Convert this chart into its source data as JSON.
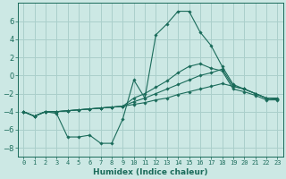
{
  "xlabel": "Humidex (Indice chaleur)",
  "background_color": "#cce8e4",
  "grid_color": "#aacfcb",
  "line_color": "#1a6b5a",
  "x_values": [
    0,
    1,
    2,
    3,
    4,
    5,
    6,
    7,
    8,
    9,
    10,
    11,
    12,
    13,
    14,
    15,
    16,
    17,
    18,
    19,
    20,
    21,
    22,
    23
  ],
  "series1": [
    -4.0,
    -4.5,
    -4.0,
    -4.2,
    -6.8,
    -6.8,
    -6.6,
    -7.5,
    -7.5,
    -4.8,
    -0.5,
    -2.5,
    4.5,
    5.7,
    7.1,
    7.1,
    4.8,
    3.3,
    1.0,
    -1.0,
    -1.5,
    -2.0,
    -2.5,
    -2.5
  ],
  "series2": [
    -4.0,
    -4.5,
    -4.0,
    -4.0,
    -3.9,
    -3.8,
    -3.7,
    -3.6,
    -3.5,
    -3.4,
    -3.2,
    -3.0,
    -2.7,
    -2.5,
    -2.1,
    -1.8,
    -1.5,
    -1.2,
    -0.9,
    -1.2,
    -1.5,
    -2.0,
    -2.5,
    -2.6
  ],
  "series3": [
    -4.0,
    -4.5,
    -4.0,
    -4.0,
    -3.9,
    -3.8,
    -3.7,
    -3.6,
    -3.5,
    -3.4,
    -2.9,
    -2.5,
    -2.0,
    -1.5,
    -1.0,
    -0.5,
    0.0,
    0.3,
    0.7,
    -1.2,
    -1.5,
    -2.0,
    -2.5,
    -2.6
  ],
  "series4": [
    -4.0,
    -4.5,
    -4.0,
    -4.0,
    -3.9,
    -3.8,
    -3.7,
    -3.6,
    -3.5,
    -3.4,
    -2.5,
    -2.0,
    -1.3,
    -0.6,
    0.3,
    1.0,
    1.3,
    0.8,
    0.5,
    -1.5,
    -1.8,
    -2.2,
    -2.7,
    -2.7
  ],
  "ylim": [
    -9,
    8
  ],
  "xlim": [
    -0.5,
    23.5
  ],
  "yticks": [
    -8,
    -6,
    -4,
    -2,
    0,
    2,
    4,
    6
  ],
  "xticks": [
    0,
    1,
    2,
    3,
    4,
    5,
    6,
    7,
    8,
    9,
    10,
    11,
    12,
    13,
    14,
    15,
    16,
    17,
    18,
    19,
    20,
    21,
    22,
    23
  ],
  "xlabel_fontsize": 6.5,
  "ytick_fontsize": 6,
  "xtick_fontsize": 5
}
